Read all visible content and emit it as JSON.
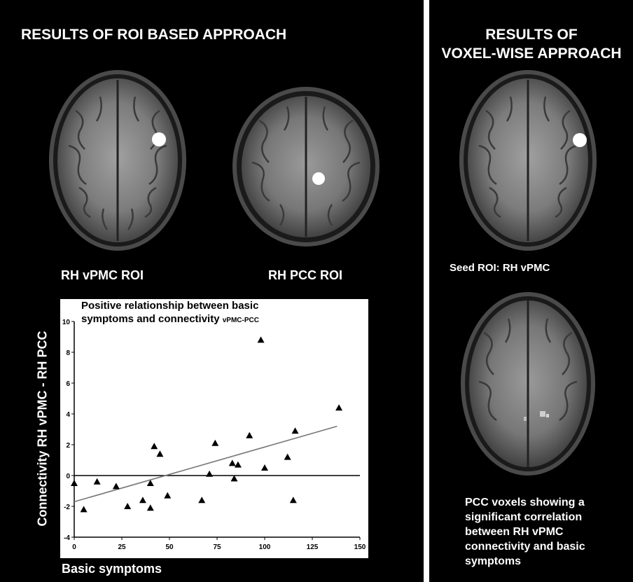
{
  "left_heading": "RESULTS OF ROI BASED APPROACH",
  "right_heading_line1": "RESULTS OF",
  "right_heading_line2": "VOXEL-WISE APPROACH",
  "label_vpmc": "RH vPMC ROI",
  "label_pcc": "RH PCC ROI",
  "label_seed": "Seed ROI: RH vPMC",
  "label_voxels": "PCC voxels showing a significant correlation between RH vPMC connectivity and basic symptoms",
  "chart_data": {
    "type": "scatter",
    "title_main": "Positive relationship between basic symptoms and connectivity",
    "title_sub": "vPMC-PCC",
    "xlabel": "Basic symptoms",
    "ylabel": "Connectivity RH vPMC - RH PCC",
    "xlim": [
      0,
      150
    ],
    "ylim": [
      -4,
      10
    ],
    "xticks": [
      0,
      25,
      50,
      75,
      100,
      125,
      150
    ],
    "yticks": [
      -4,
      -2,
      0,
      2,
      4,
      6,
      8,
      10
    ],
    "marker": "triangle",
    "points": [
      [
        0,
        -0.5
      ],
      [
        5,
        -2.2
      ],
      [
        12,
        -0.4
      ],
      [
        22,
        -0.7
      ],
      [
        28,
        -2.0
      ],
      [
        36,
        -1.6
      ],
      [
        40,
        -0.5
      ],
      [
        40,
        -2.1
      ],
      [
        42,
        1.9
      ],
      [
        45,
        1.4
      ],
      [
        49,
        -1.3
      ],
      [
        67,
        -1.6
      ],
      [
        71,
        0.1
      ],
      [
        74,
        2.1
      ],
      [
        83,
        0.8
      ],
      [
        84,
        -0.2
      ],
      [
        86,
        0.7
      ],
      [
        92,
        2.6
      ],
      [
        98,
        8.8
      ],
      [
        100,
        0.5
      ],
      [
        112,
        1.2
      ],
      [
        115,
        -1.6
      ],
      [
        116,
        2.9
      ],
      [
        139,
        4.4
      ]
    ],
    "trendline": {
      "x": [
        0,
        138
      ],
      "y": [
        -1.7,
        3.2
      ]
    },
    "zero_line": true,
    "grid": false
  },
  "colors": {
    "background": "#000000",
    "text": "#ffffff",
    "roi_marker": "#ffffff",
    "trendline": "#777777"
  }
}
